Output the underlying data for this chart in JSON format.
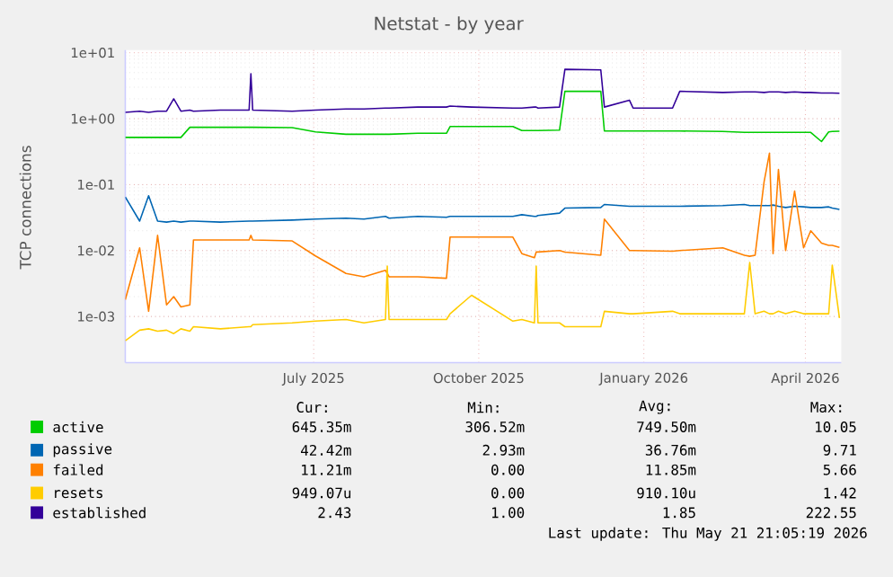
{
  "chart_data": {
    "type": "line",
    "title": "Netstat - by year",
    "ylabel": "TCP connections",
    "log": true,
    "grid": true,
    "legend": "bottom",
    "ylim": [
      0.0002,
      11
    ],
    "yticks": [
      {
        "value": 0.001,
        "label": "1e-03"
      },
      {
        "value": 0.01,
        "label": "1e-02"
      },
      {
        "value": 0.1,
        "label": "1e-01"
      },
      {
        "value": 1,
        "label": "1e+00"
      },
      {
        "value": 10,
        "label": "1e+01"
      }
    ],
    "xlim": [
      "2025-03-18",
      "2026-04-21"
    ],
    "xticks": [
      {
        "value": "2025-07-01",
        "label": "July 2025"
      },
      {
        "value": "2025-10-01",
        "label": "October 2025"
      },
      {
        "value": "2026-01-01",
        "label": "January 2026"
      },
      {
        "value": "2026-04-01",
        "label": "April 2026"
      }
    ],
    "x": [
      "2025-03-18",
      "2025-03-26",
      "2025-03-31",
      "2025-04-05",
      "2025-04-10",
      "2025-04-14",
      "2025-04-18",
      "2025-04-23",
      "2025-04-25",
      "2025-05-10",
      "2025-05-26",
      "2025-05-27",
      "2025-05-28",
      "2025-06-19",
      "2025-07-02",
      "2025-07-19",
      "2025-07-29",
      "2025-08-10",
      "2025-08-11",
      "2025-08-12",
      "2025-08-28",
      "2025-09-13",
      "2025-09-15",
      "2025-09-27",
      "2025-10-20",
      "2025-10-25",
      "2025-11-01",
      "2025-11-02",
      "2025-11-03",
      "2025-11-15",
      "2025-11-18",
      "2025-12-08",
      "2025-12-10",
      "2025-12-24",
      "2025-12-26",
      "2026-01-17",
      "2026-01-21",
      "2026-02-14",
      "2026-02-26",
      "2026-03-01",
      "2026-03-04",
      "2026-03-09",
      "2026-03-12",
      "2026-03-14",
      "2026-03-17",
      "2026-03-21",
      "2026-03-26",
      "2026-03-31",
      "2026-04-04",
      "2026-04-10",
      "2026-04-14",
      "2026-04-16",
      "2026-04-20"
    ],
    "series": [
      {
        "name": "active",
        "color": "#00cc00",
        "values": [
          0.52,
          0.52,
          0.52,
          0.52,
          0.52,
          0.52,
          0.52,
          0.74,
          0.74,
          0.74,
          0.74,
          0.74,
          0.74,
          0.73,
          0.63,
          0.58,
          0.58,
          0.58,
          0.58,
          0.58,
          0.6,
          0.6,
          0.76,
          0.76,
          0.76,
          0.66,
          0.66,
          0.66,
          0.66,
          0.67,
          2.6,
          2.6,
          0.65,
          0.65,
          0.65,
          0.65,
          0.65,
          0.64,
          0.62,
          0.62,
          0.62,
          0.62,
          0.62,
          0.62,
          0.62,
          0.62,
          0.62,
          0.62,
          0.62,
          0.45,
          0.63,
          0.64,
          0.645
        ]
      },
      {
        "name": "passive",
        "color": "#0066b3",
        "values": [
          0.065,
          0.028,
          0.068,
          0.028,
          0.027,
          0.028,
          0.027,
          0.028,
          0.028,
          0.027,
          0.028,
          0.028,
          0.028,
          0.029,
          0.03,
          0.031,
          0.03,
          0.033,
          0.032,
          0.031,
          0.033,
          0.032,
          0.033,
          0.033,
          0.033,
          0.035,
          0.033,
          0.033,
          0.034,
          0.037,
          0.044,
          0.045,
          0.05,
          0.047,
          0.047,
          0.047,
          0.047,
          0.048,
          0.05,
          0.048,
          0.048,
          0.048,
          0.048,
          0.049,
          0.047,
          0.045,
          0.047,
          0.046,
          0.045,
          0.045,
          0.046,
          0.044,
          0.042
        ]
      },
      {
        "name": "failed",
        "color": "#ff8000",
        "values": [
          0.0018,
          0.011,
          0.0012,
          0.017,
          0.0015,
          0.002,
          0.0014,
          0.0015,
          0.0145,
          0.0145,
          0.0145,
          0.017,
          0.0145,
          0.014,
          0.0083,
          0.0045,
          0.004,
          0.005,
          0.0045,
          0.004,
          0.004,
          0.0038,
          0.016,
          0.016,
          0.016,
          0.009,
          0.0078,
          0.0095,
          0.0095,
          0.01,
          0.0095,
          0.0085,
          0.03,
          0.01,
          0.01,
          0.0098,
          0.01,
          0.011,
          0.0085,
          0.0082,
          0.0085,
          0.11,
          0.3,
          0.009,
          0.17,
          0.01,
          0.08,
          0.011,
          0.02,
          0.013,
          0.012,
          0.012,
          0.0112
        ]
      },
      {
        "name": "resets",
        "color": "#ffcc00",
        "values": [
          0.00043,
          0.00062,
          0.00065,
          0.0006,
          0.00062,
          0.00055,
          0.00065,
          0.0006,
          0.0007,
          0.00065,
          0.0007,
          0.0007,
          0.00075,
          0.0008,
          0.00085,
          0.0009,
          0.0008,
          0.0009,
          0.0058,
          0.0009,
          0.0009,
          0.0009,
          0.0011,
          0.0021,
          0.00085,
          0.0009,
          0.0008,
          0.0058,
          0.0008,
          0.0008,
          0.0007,
          0.0007,
          0.0012,
          0.0011,
          0.0011,
          0.0012,
          0.0011,
          0.0011,
          0.0011,
          0.0066,
          0.0011,
          0.0012,
          0.0011,
          0.0011,
          0.0012,
          0.0011,
          0.0012,
          0.0011,
          0.0011,
          0.0011,
          0.0011,
          0.006,
          0.00095
        ]
      },
      {
        "name": "established",
        "color": "#330099",
        "values": [
          1.25,
          1.3,
          1.25,
          1.3,
          1.3,
          2.0,
          1.3,
          1.35,
          1.3,
          1.35,
          1.35,
          4.8,
          1.35,
          1.3,
          1.35,
          1.4,
          1.4,
          1.45,
          1.45,
          1.45,
          1.5,
          1.5,
          1.55,
          1.5,
          1.45,
          1.45,
          1.5,
          1.5,
          1.45,
          1.5,
          5.6,
          5.5,
          1.5,
          1.9,
          1.45,
          1.45,
          2.6,
          2.5,
          2.55,
          2.55,
          2.55,
          2.5,
          2.55,
          2.55,
          2.55,
          2.5,
          2.55,
          2.5,
          2.5,
          2.45,
          2.45,
          2.45,
          2.43
        ]
      }
    ],
    "annotations": [
      "Cur:",
      "Min:",
      "Avg:",
      "Max:",
      "645.35m",
      "306.52m",
      "749.50m",
      "10.05",
      "42.42m",
      "2.93m",
      "36.76m",
      "9.71",
      "11.21m",
      "0.00",
      "11.85m",
      "5.66",
      "949.07u",
      "0.00",
      "910.10u",
      "1.42",
      "2.43",
      "1.00",
      "1.85",
      "222.55",
      "Last update: Thu May 21 21:05:19 2026"
    ]
  }
}
